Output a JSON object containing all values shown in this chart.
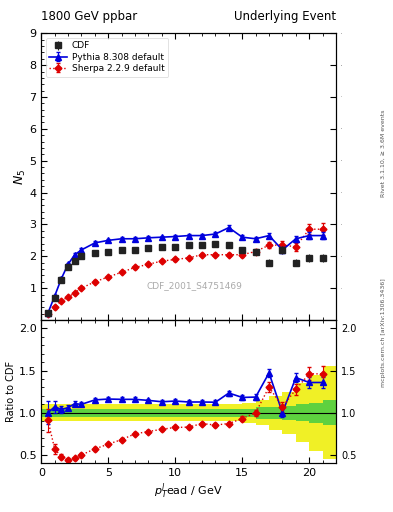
{
  "title_left": "1800 GeV ppbar",
  "title_right": "Underlying Event",
  "ylabel_main": "$N_5$",
  "ylabel_ratio": "Ratio to CDF",
  "xlabel": "$p_T^{l}$ead / GeV",
  "right_label_top": "Rivet 3.1.10, ≥ 3.6M events",
  "right_label_bottom": "mcplots.cern.ch [arXiv:1306.3436]",
  "watermark": "CDF_2001_S4751469",
  "main_ylim": [
    0,
    9
  ],
  "main_yticks": [
    1,
    2,
    3,
    4,
    5,
    6,
    7,
    8,
    9
  ],
  "ratio_ylim": [
    0.4,
    2.1
  ],
  "ratio_yticks": [
    0.5,
    1.0,
    1.5,
    2.0
  ],
  "xlim": [
    0,
    22
  ],
  "cdf_x": [
    0.5,
    1.0,
    1.5,
    2.0,
    2.5,
    3.0,
    4.0,
    5.0,
    6.0,
    7.0,
    8.0,
    9.0,
    10.0,
    11.0,
    12.0,
    13.0,
    14.0,
    15.0,
    16.0,
    17.0,
    18.0,
    19.0,
    20.0,
    21.0
  ],
  "cdf_y": [
    0.22,
    0.7,
    1.25,
    1.65,
    1.85,
    2.0,
    2.1,
    2.15,
    2.2,
    2.2,
    2.25,
    2.3,
    2.3,
    2.35,
    2.35,
    2.4,
    2.35,
    2.2,
    2.15,
    1.8,
    2.2,
    1.8,
    1.95,
    1.95
  ],
  "cdf_yerr": [
    0.05,
    0.08,
    0.08,
    0.08,
    0.08,
    0.08,
    0.08,
    0.08,
    0.08,
    0.08,
    0.08,
    0.08,
    0.08,
    0.08,
    0.08,
    0.08,
    0.08,
    0.08,
    0.08,
    0.12,
    0.12,
    0.12,
    0.12,
    0.12
  ],
  "pythia_x": [
    0.5,
    1.0,
    1.5,
    2.0,
    2.5,
    3.0,
    4.0,
    5.0,
    6.0,
    7.0,
    8.0,
    9.0,
    10.0,
    11.0,
    12.0,
    13.0,
    14.0,
    15.0,
    16.0,
    17.0,
    18.0,
    19.0,
    20.0,
    21.0
  ],
  "pythia_y": [
    0.22,
    0.75,
    1.3,
    1.75,
    2.05,
    2.2,
    2.42,
    2.5,
    2.55,
    2.55,
    2.58,
    2.6,
    2.62,
    2.65,
    2.65,
    2.7,
    2.9,
    2.6,
    2.55,
    2.65,
    2.2,
    2.55,
    2.65,
    2.65
  ],
  "pythia_yerr": [
    0.03,
    0.05,
    0.05,
    0.05,
    0.05,
    0.05,
    0.05,
    0.05,
    0.05,
    0.05,
    0.05,
    0.05,
    0.05,
    0.05,
    0.05,
    0.05,
    0.07,
    0.07,
    0.07,
    0.08,
    0.1,
    0.1,
    0.12,
    0.12
  ],
  "sherpa_x": [
    0.5,
    1.0,
    1.5,
    2.0,
    2.5,
    3.0,
    4.0,
    5.0,
    6.0,
    7.0,
    8.0,
    9.0,
    10.0,
    11.0,
    12.0,
    13.0,
    14.0,
    15.0,
    16.0,
    17.0,
    18.0,
    19.0,
    20.0,
    21.0
  ],
  "sherpa_y": [
    0.2,
    0.4,
    0.6,
    0.72,
    0.85,
    1.0,
    1.2,
    1.35,
    1.5,
    1.65,
    1.75,
    1.85,
    1.9,
    1.95,
    2.05,
    2.05,
    2.05,
    2.05,
    2.15,
    2.35,
    2.35,
    2.3,
    2.85,
    2.85
  ],
  "sherpa_yerr": [
    0.03,
    0.04,
    0.04,
    0.04,
    0.04,
    0.04,
    0.04,
    0.04,
    0.04,
    0.04,
    0.04,
    0.04,
    0.04,
    0.04,
    0.05,
    0.05,
    0.05,
    0.07,
    0.07,
    0.1,
    0.12,
    0.12,
    0.15,
    0.18
  ],
  "cdf_color": "#222222",
  "pythia_color": "#0000dd",
  "sherpa_color": "#dd0000",
  "green_color": "#44cc44",
  "yellow_color": "#eeee00",
  "bg_color": "#ffffff",
  "block_x_edges": [
    0.0,
    1.0,
    2.0,
    3.0,
    4.0,
    5.0,
    6.0,
    7.0,
    8.0,
    9.0,
    10.0,
    11.0,
    12.0,
    13.0,
    14.0,
    15.0,
    16.0,
    17.0,
    18.0,
    19.0,
    20.0,
    21.0,
    22.0
  ],
  "block_green_half": [
    0.05,
    0.05,
    0.05,
    0.05,
    0.05,
    0.05,
    0.05,
    0.05,
    0.05,
    0.05,
    0.05,
    0.05,
    0.05,
    0.05,
    0.05,
    0.05,
    0.07,
    0.07,
    0.08,
    0.1,
    0.12,
    0.15,
    0.15
  ],
  "block_yellow_half": [
    0.1,
    0.1,
    0.1,
    0.1,
    0.1,
    0.1,
    0.1,
    0.1,
    0.1,
    0.1,
    0.1,
    0.1,
    0.1,
    0.1,
    0.1,
    0.12,
    0.15,
    0.2,
    0.25,
    0.35,
    0.45,
    0.55,
    0.55
  ]
}
